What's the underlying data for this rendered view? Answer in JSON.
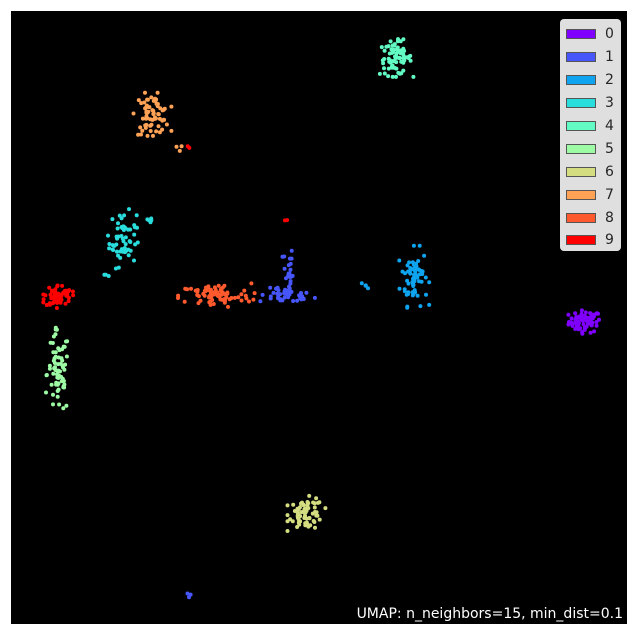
{
  "chart_data": {
    "type": "scatter",
    "title": "",
    "xlabel": "",
    "ylabel": "",
    "xlim": [
      0,
      100
    ],
    "ylim": [
      0,
      100
    ],
    "grid": false,
    "background": "#000000",
    "legend_position": "top-right",
    "annotation": "UMAP: n_neighbors=15, min_dist=0.1",
    "series": [
      {
        "name": "0",
        "color": "#8000ff",
        "clusters": [
          {
            "cx": 93.0,
            "cy": 49.5,
            "sx": 1.3,
            "sy": 0.9,
            "n": 70
          }
        ]
      },
      {
        "name": "1",
        "color": "#4756fb",
        "clusters": [
          {
            "cx": 44.5,
            "cy": 53.7,
            "sx": 2.2,
            "sy": 0.6,
            "n": 40
          },
          {
            "cx": 44.8,
            "cy": 57.5,
            "sx": 0.4,
            "sy": 2.4,
            "n": 25
          },
          {
            "cx": 28.6,
            "cy": 4.8,
            "sx": 0.3,
            "sy": 0.3,
            "n": 3
          }
        ]
      },
      {
        "name": "2",
        "color": "#0ea4f0",
        "clusters": [
          {
            "cx": 65.3,
            "cy": 56.8,
            "sx": 1.1,
            "sy": 2.3,
            "n": 65
          },
          {
            "cx": 57.5,
            "cy": 55.4,
            "sx": 0.4,
            "sy": 0.3,
            "n": 4
          }
        ]
      },
      {
        "name": "3",
        "color": "#2adddd",
        "clusters": [
          {
            "cx": 18.0,
            "cy": 63.0,
            "sx": 1.1,
            "sy": 2.2,
            "n": 60
          },
          {
            "cx": 22.5,
            "cy": 66.2,
            "sx": 0.5,
            "sy": 0.4,
            "n": 5
          },
          {
            "cx": 15.3,
            "cy": 57.0,
            "sx": 0.3,
            "sy": 0.3,
            "n": 3
          }
        ]
      },
      {
        "name": "4",
        "color": "#62fbc4",
        "clusters": [
          {
            "cx": 62.3,
            "cy": 92.5,
            "sx": 1.3,
            "sy": 1.4,
            "n": 75
          }
        ]
      },
      {
        "name": "5",
        "color": "#9cfba4",
        "clusters": [
          {
            "cx": 7.5,
            "cy": 41.0,
            "sx": 0.9,
            "sy": 3.4,
            "n": 70
          }
        ]
      },
      {
        "name": "6",
        "color": "#d4dd80",
        "clusters": [
          {
            "cx": 47.8,
            "cy": 18.2,
            "sx": 1.4,
            "sy": 1.3,
            "n": 70
          }
        ]
      },
      {
        "name": "7",
        "color": "#ffa256",
        "clusters": [
          {
            "cx": 22.8,
            "cy": 83.3,
            "sx": 1.4,
            "sy": 1.6,
            "n": 70
          },
          {
            "cx": 27.0,
            "cy": 78.0,
            "sx": 0.4,
            "sy": 0.3,
            "n": 3
          }
        ]
      },
      {
        "name": "8",
        "color": "#ff5a2d",
        "clusters": [
          {
            "cx": 33.0,
            "cy": 53.7,
            "sx": 2.9,
            "sy": 1.0,
            "n": 85
          }
        ]
      },
      {
        "name": "9",
        "color": "#ff0000",
        "clusters": [
          {
            "cx": 7.5,
            "cy": 53.7,
            "sx": 1.1,
            "sy": 0.9,
            "n": 65
          },
          {
            "cx": 44.7,
            "cy": 66.3,
            "sx": 0.2,
            "sy": 0.2,
            "n": 2
          },
          {
            "cx": 28.8,
            "cy": 77.9,
            "sx": 0.2,
            "sy": 0.2,
            "n": 2
          }
        ]
      }
    ]
  }
}
